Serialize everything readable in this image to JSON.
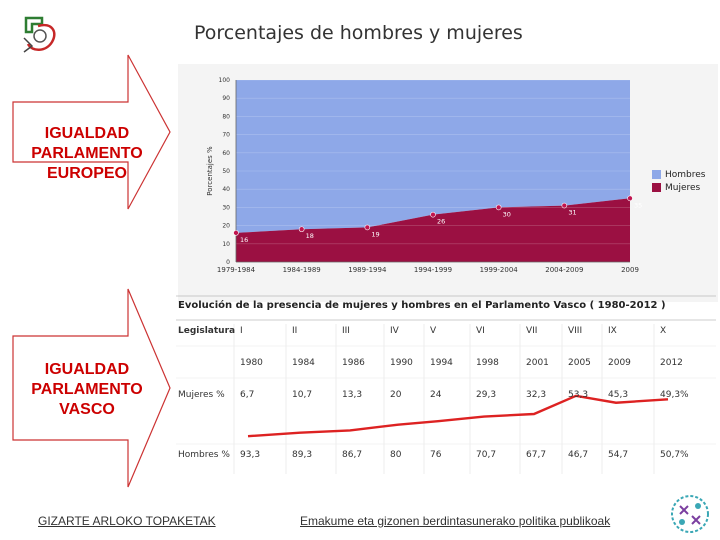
{
  "left_labels": [
    [
      "IGUALDAD",
      "PARLAMENTO",
      "EUROPEO"
    ],
    [
      "IGUALDAD",
      "PARLAMENTO",
      "VASCO"
    ]
  ],
  "chart_data": [
    {
      "type": "area",
      "title": "Porcentajes de hombres y mujeres",
      "ylabel": "Porcentajes %",
      "ylim": [
        0,
        100
      ],
      "y_ticks": [
        "0",
        "10",
        "20",
        "30",
        "40",
        "50",
        "60",
        "70",
        "80",
        "90",
        "100"
      ],
      "x_tick_labels": [
        "1979-1984",
        "1984-1989",
        "1989-1994",
        "1994-1999",
        "1999-2004",
        "2004-2009",
        "2009"
      ],
      "legend_position": "right",
      "x": [
        0,
        1,
        2,
        3,
        4,
        5,
        6
      ],
      "series": [
        {
          "name": "Mujeres",
          "color": "#9b1042",
          "values": [
            16,
            18,
            19,
            26,
            30,
            31,
            35
          ]
        },
        {
          "name": "Hombres",
          "color": "#8ea8e8",
          "values": [
            84,
            82,
            81,
            74,
            70,
            69,
            65
          ]
        }
      ],
      "point_labels": [
        "16",
        "18",
        "19",
        "26",
        "30",
        "31",
        "35"
      ]
    },
    {
      "type": "table",
      "title": "Evolución de la presencia de mujeres y hombres en el Parlamento Vasco ( 1980-2012 )",
      "columns": [
        "Legislatura",
        "I",
        "II",
        "III",
        "IV",
        "V",
        "VI",
        "VII",
        "VIII",
        "IX",
        "X"
      ],
      "rows": [
        {
          "label": "",
          "values": [
            "1980",
            "1984",
            "1986",
            "1990",
            "1994",
            "1998",
            "2001",
            "2005",
            "2009",
            "2012"
          ]
        },
        {
          "label": "Mujeres %",
          "values": [
            "6,7",
            "10,7",
            "13,3",
            "20",
            "24",
            "29,3",
            "32,3",
            "53,3",
            "45,3",
            "49,3%"
          ]
        },
        {
          "label": "Hombres %",
          "values": [
            "93,3",
            "89,3",
            "86,7",
            "80",
            "76",
            "70,7",
            "67,7",
            "46,7",
            "54,7",
            "50,7%"
          ]
        }
      ],
      "line_series": {
        "name": "Mujeres %",
        "color": "#dd2222",
        "values": [
          6.7,
          10.7,
          13.3,
          20,
          24,
          29.3,
          32.3,
          53.3,
          45.3,
          49.3
        ]
      }
    }
  ],
  "legend": [
    "Hombres",
    "Mujeres"
  ],
  "footer": {
    "left_link": "GIZARTE ARLOKO TOPAKETAK",
    "right_link": "Emakume eta gizonen berdintasunerako politika publikoak"
  }
}
